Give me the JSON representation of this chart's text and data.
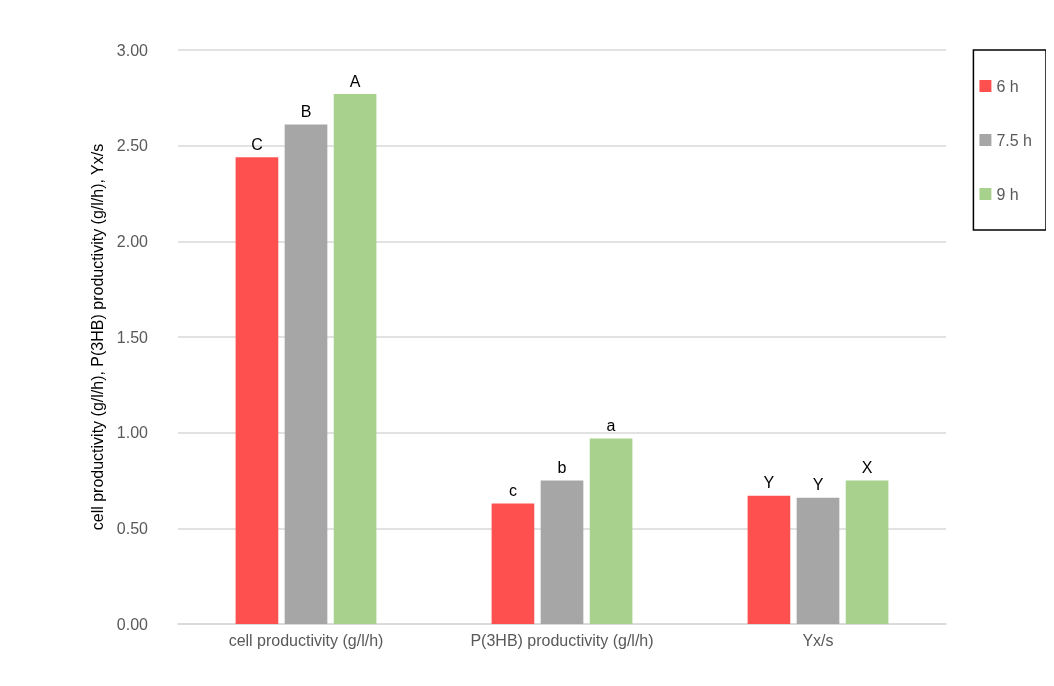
{
  "chart_data": {
    "type": "bar",
    "ylabel": "cell productivity (g/l/h), P(3HB) productivity (g/l/h), Yx/s",
    "categories": [
      "cell productivity (g/l/h)",
      "P(3HB) productivity (g/l/h)",
      "Yx/s"
    ],
    "series": [
      {
        "name": "6 h",
        "color": "#ff5050",
        "values": [
          2.44,
          0.63,
          0.67
        ],
        "value_labels": [
          "C",
          "c",
          "Y"
        ]
      },
      {
        "name": "7.5 h",
        "color": "#a6a6a6",
        "values": [
          2.61,
          0.75,
          0.66
        ],
        "value_labels": [
          "B",
          "b",
          "Y"
        ]
      },
      {
        "name": "9 h",
        "color": "#a9d18e",
        "values": [
          2.77,
          0.97,
          0.75
        ],
        "value_labels": [
          "A",
          "a",
          "X"
        ]
      }
    ],
    "ylim": [
      0,
      3
    ],
    "yticks": [
      {
        "value": 0,
        "label": "0.00"
      },
      {
        "value": 0.5,
        "label": "0.50"
      },
      {
        "value": 1,
        "label": "1.00"
      },
      {
        "value": 1.5,
        "label": "1.50"
      },
      {
        "value": 2,
        "label": "2.00"
      },
      {
        "value": 2.5,
        "label": "2.50"
      },
      {
        "value": 3,
        "label": "3.00"
      }
    ],
    "grid": "y",
    "legend": "top right"
  }
}
